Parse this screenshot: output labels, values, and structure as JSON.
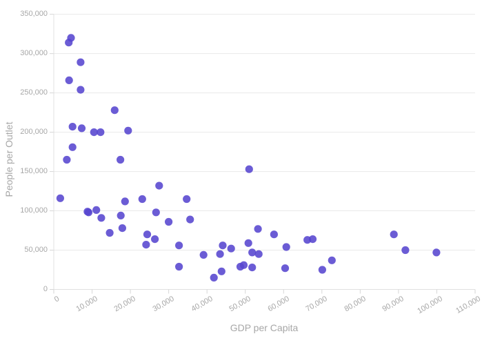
{
  "chart_data": {
    "type": "scatter",
    "title": "",
    "xlabel": "GDP per Capita",
    "ylabel": "People per Outlet",
    "xlim": [
      0,
      110000
    ],
    "ylim": [
      0,
      350000
    ],
    "grid": "horizontal gridlines only",
    "legend": "none",
    "x_ticks": [
      0,
      10000,
      20000,
      30000,
      40000,
      50000,
      60000,
      70000,
      80000,
      90000,
      100000,
      110000
    ],
    "x_tick_labels": [
      "0",
      "10,000",
      "20,000",
      "30,000",
      "40,000",
      "50,000",
      "60,000",
      "70,000",
      "80,000",
      "90,000",
      "100,000",
      "110,000"
    ],
    "y_ticks": [
      0,
      50000,
      100000,
      150000,
      200000,
      250000,
      300000,
      350000
    ],
    "y_tick_labels": [
      "0",
      "50,000",
      "100,000",
      "150,000",
      "200,000",
      "250,000",
      "300,000",
      "350,000"
    ],
    "points": [
      [
        1700,
        116000
      ],
      [
        3400,
        165000
      ],
      [
        3900,
        314000
      ],
      [
        4000,
        266000
      ],
      [
        4500,
        320000
      ],
      [
        4900,
        207000
      ],
      [
        4900,
        181000
      ],
      [
        7000,
        289000
      ],
      [
        7000,
        254000
      ],
      [
        7300,
        205000
      ],
      [
        8800,
        99000
      ],
      [
        9100,
        98000
      ],
      [
        10500,
        200000
      ],
      [
        11100,
        101000
      ],
      [
        12200,
        200000
      ],
      [
        12400,
        91000
      ],
      [
        14600,
        72000
      ],
      [
        15900,
        228000
      ],
      [
        17400,
        165000
      ],
      [
        17500,
        94000
      ],
      [
        17900,
        78000
      ],
      [
        18600,
        112000
      ],
      [
        19400,
        202000
      ],
      [
        23100,
        115000
      ],
      [
        24100,
        57000
      ],
      [
        24400,
        70000
      ],
      [
        26400,
        64000
      ],
      [
        26700,
        98000
      ],
      [
        27500,
        132000
      ],
      [
        30000,
        86000
      ],
      [
        32700,
        56000
      ],
      [
        32700,
        29000
      ],
      [
        34700,
        115000
      ],
      [
        35600,
        89000
      ],
      [
        39100,
        44000
      ],
      [
        41800,
        15000
      ],
      [
        43400,
        45000
      ],
      [
        43800,
        23000
      ],
      [
        44100,
        56000
      ],
      [
        46300,
        52000
      ],
      [
        48700,
        29000
      ],
      [
        49600,
        31000
      ],
      [
        50800,
        59000
      ],
      [
        51000,
        153000
      ],
      [
        51800,
        47000
      ],
      [
        51800,
        28000
      ],
      [
        53300,
        77000
      ],
      [
        53500,
        45000
      ],
      [
        57500,
        70000
      ],
      [
        60400,
        27000
      ],
      [
        60700,
        54000
      ],
      [
        66200,
        63000
      ],
      [
        67600,
        64000
      ],
      [
        70100,
        25000
      ],
      [
        72600,
        37000
      ],
      [
        88800,
        70000
      ],
      [
        91800,
        50000
      ],
      [
        99900,
        47000
      ]
    ]
  },
  "style": {
    "marker_color": "#5646cf",
    "marker_opacity": 0.88,
    "marker_radius": 5.6,
    "grid_color": "#e9e9e9",
    "zeroline_color": "#e0e0e0",
    "tick_color": "#d6d6d6",
    "tick_label_color": "#a7a7a7",
    "axis_title_color": "#a7a7a7",
    "background": "#ffffff"
  }
}
